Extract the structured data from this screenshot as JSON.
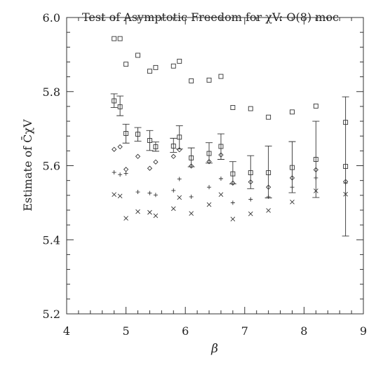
{
  "chart_data": {
    "type": "scatter",
    "title": "Test of Asymptotic Freedom for χV: O(8) moc",
    "xlabel": "β",
    "ylabel": "Estimate of C̄χV",
    "xlim": [
      4,
      9
    ],
    "ylim": [
      5.2,
      6.0
    ],
    "x_ticks": [
      "4",
      "5",
      "6",
      "7",
      "8",
      "9"
    ],
    "y_ticks": [
      "5.2",
      "5.4",
      "5.6",
      "5.8",
      "6.0"
    ],
    "grid": false,
    "legend": "none",
    "series": [
      {
        "marker": "square",
        "points": [
          [
            4.8,
            5.943
          ],
          [
            4.9,
            5.943
          ],
          [
            5.0,
            5.874
          ],
          [
            5.2,
            5.898
          ],
          [
            5.4,
            5.855
          ],
          [
            5.5,
            5.865
          ],
          [
            5.8,
            5.869
          ],
          [
            5.9,
            5.882
          ],
          [
            6.1,
            5.829
          ],
          [
            6.4,
            5.831
          ],
          [
            6.6,
            5.841
          ],
          [
            6.8,
            5.757
          ],
          [
            7.1,
            5.754
          ],
          [
            7.4,
            5.731
          ],
          [
            7.8,
            5.745
          ],
          [
            8.2,
            5.761
          ],
          [
            8.7,
            5.717
          ]
        ]
      },
      {
        "marker": "crossed-box-errorbar",
        "points": [
          [
            4.8,
            5.775,
            5.757,
            5.794
          ],
          [
            4.9,
            5.759,
            5.735,
            5.788
          ],
          [
            5.0,
            5.687,
            5.661,
            5.712
          ],
          [
            5.2,
            5.685,
            5.666,
            5.703
          ],
          [
            5.4,
            5.668,
            5.641,
            5.695
          ],
          [
            5.5,
            5.651,
            5.639,
            5.664
          ],
          [
            5.8,
            5.653,
            5.636,
            5.674
          ],
          [
            5.9,
            5.677,
            5.645,
            5.708
          ],
          [
            6.1,
            5.621,
            5.597,
            5.648
          ],
          [
            6.4,
            5.633,
            5.607,
            5.662
          ],
          [
            6.6,
            5.652,
            5.617,
            5.686
          ],
          [
            6.8,
            5.578,
            5.551,
            5.611
          ],
          [
            7.1,
            5.581,
            5.538,
            5.627
          ],
          [
            7.4,
            5.581,
            5.513,
            5.653
          ],
          [
            7.8,
            5.595,
            5.527,
            5.665
          ],
          [
            8.2,
            5.617,
            5.514,
            5.72
          ],
          [
            8.7,
            5.598,
            5.41,
            5.786
          ]
        ]
      },
      {
        "marker": "diamond",
        "points": [
          [
            4.8,
            5.644
          ],
          [
            4.9,
            5.651
          ],
          [
            5.0,
            5.59
          ],
          [
            5.2,
            5.625
          ],
          [
            5.4,
            5.593
          ],
          [
            5.5,
            5.61
          ],
          [
            5.8,
            5.625
          ],
          [
            5.9,
            5.643
          ],
          [
            6.1,
            5.599
          ],
          [
            6.4,
            5.611
          ],
          [
            6.6,
            5.629
          ],
          [
            6.8,
            5.553
          ],
          [
            7.1,
            5.556
          ],
          [
            7.4,
            5.542
          ],
          [
            7.8,
            5.567
          ],
          [
            8.2,
            5.589
          ],
          [
            8.7,
            5.557
          ]
        ]
      },
      {
        "marker": "plus",
        "points": [
          [
            4.8,
            5.582
          ],
          [
            4.9,
            5.576
          ],
          [
            5.0,
            5.579
          ],
          [
            5.2,
            5.529
          ],
          [
            5.4,
            5.526
          ],
          [
            5.5,
            5.521
          ],
          [
            5.8,
            5.533
          ],
          [
            5.9,
            5.564
          ],
          [
            6.1,
            5.516
          ],
          [
            6.4,
            5.542
          ],
          [
            6.6,
            5.565
          ],
          [
            6.8,
            5.5
          ],
          [
            7.1,
            5.509
          ],
          [
            7.4,
            5.516
          ],
          [
            7.8,
            5.542
          ],
          [
            8.2,
            5.567
          ],
          [
            8.7,
            5.553
          ]
        ]
      },
      {
        "marker": "cross",
        "points": [
          [
            4.8,
            5.522
          ],
          [
            4.9,
            5.518
          ],
          [
            5.0,
            5.458
          ],
          [
            5.2,
            5.476
          ],
          [
            5.4,
            5.474
          ],
          [
            5.5,
            5.465
          ],
          [
            5.8,
            5.484
          ],
          [
            5.9,
            5.514
          ],
          [
            6.1,
            5.471
          ],
          [
            6.4,
            5.495
          ],
          [
            6.6,
            5.522
          ],
          [
            6.8,
            5.456
          ],
          [
            7.1,
            5.47
          ],
          [
            7.4,
            5.479
          ],
          [
            7.8,
            5.502
          ],
          [
            8.2,
            5.532
          ],
          [
            8.7,
            5.523
          ]
        ]
      }
    ]
  }
}
